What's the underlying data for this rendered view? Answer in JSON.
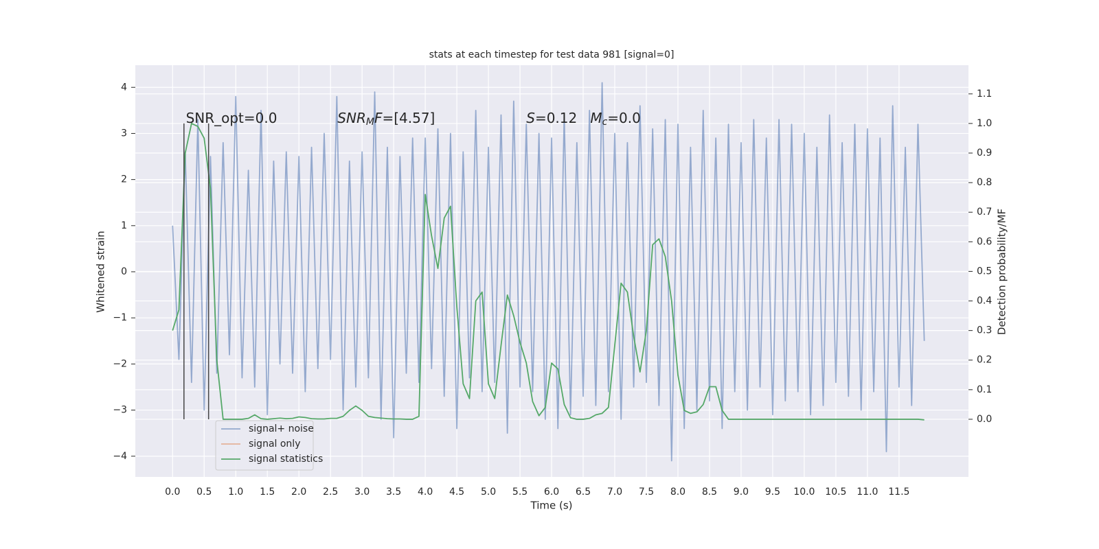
{
  "chart_data": {
    "type": "line",
    "title": "stats at each timestep for test data 981 [signal=0]",
    "xlabel": "Time (s)",
    "ylabel": "Whitened strain",
    "y2label": "Detection probability/MF",
    "x": [
      0.0,
      0.1,
      0.2,
      0.3,
      0.4,
      0.5,
      0.6,
      0.7,
      0.8,
      0.9,
      1.0,
      1.1,
      1.2,
      1.3,
      1.4,
      1.5,
      1.6,
      1.7,
      1.8,
      1.9,
      2.0,
      2.1,
      2.2,
      2.3,
      2.4,
      2.5,
      2.6,
      2.7,
      2.8,
      2.9,
      3.0,
      3.1,
      3.2,
      3.3,
      3.4,
      3.5,
      3.6,
      3.7,
      3.8,
      3.9,
      4.0,
      4.1,
      4.2,
      4.3,
      4.4,
      4.5,
      4.6,
      4.7,
      4.8,
      4.9,
      5.0,
      5.1,
      5.2,
      5.3,
      5.4,
      5.5,
      5.6,
      5.7,
      5.8,
      5.9,
      6.0,
      6.1,
      6.2,
      6.3,
      6.4,
      6.5,
      6.6,
      6.7,
      6.8,
      6.9,
      7.0,
      7.1,
      7.2,
      7.3,
      7.4,
      7.5,
      7.6,
      7.7,
      7.8,
      7.9,
      8.0,
      8.1,
      8.2,
      8.3,
      8.4,
      8.5,
      8.6,
      8.7,
      8.8,
      8.9,
      9.0,
      9.1,
      9.2,
      9.3,
      9.4,
      9.5,
      9.6,
      9.7,
      9.8,
      9.9,
      10.0,
      10.1,
      10.2,
      10.3,
      10.4,
      10.5,
      10.6,
      10.7,
      10.8,
      10.9,
      11.0,
      11.1,
      11.2,
      11.3,
      11.4,
      11.5,
      11.6,
      11.7,
      11.8,
      11.9
    ],
    "series": [
      {
        "name": "signal+ noise",
        "color": "#4c72b0",
        "alpha": 0.55,
        "axis": "y",
        "values": [
          1.0,
          -1.9,
          2.6,
          -2.4,
          3.3,
          -3.0,
          2.5,
          -2.2,
          2.8,
          -1.8,
          3.8,
          -2.3,
          2.2,
          -2.5,
          3.5,
          -3.1,
          2.4,
          -2.0,
          2.6,
          -2.2,
          2.5,
          -2.6,
          2.7,
          -2.1,
          3.0,
          -1.9,
          3.8,
          -3.0,
          2.4,
          -2.5,
          2.6,
          -2.3,
          3.9,
          -3.2,
          2.7,
          -3.6,
          2.5,
          -2.2,
          2.9,
          -2.4,
          2.9,
          -2.1,
          3.1,
          -2.7,
          3.0,
          -3.4,
          2.6,
          -2.3,
          3.5,
          -2.6,
          2.7,
          -2.4,
          3.4,
          -3.5,
          3.7,
          -2.5,
          3.2,
          -2.6,
          3.0,
          -3.2,
          2.9,
          -3.4,
          3.4,
          -3.1,
          2.8,
          -2.7,
          3.5,
          -2.9,
          4.1,
          -2.6,
          3.0,
          -3.2,
          2.8,
          -2.5,
          3.6,
          -2.4,
          3.1,
          -2.9,
          3.3,
          -4.1,
          3.2,
          -3.4,
          2.7,
          -3.0,
          3.5,
          -2.8,
          2.9,
          -3.4,
          3.2,
          -2.6,
          2.8,
          -3.0,
          3.3,
          -2.5,
          2.9,
          -3.1,
          3.3,
          -2.8,
          3.2,
          -2.6,
          3.0,
          -3.1,
          2.7,
          -2.9,
          3.4,
          -2.4,
          2.8,
          -2.7,
          3.2,
          -3.0,
          3.1,
          -2.6,
          2.9,
          -3.9,
          3.6,
          -2.5,
          2.7,
          -2.9,
          3.2,
          -1.5
        ]
      },
      {
        "name": "signal only",
        "color": "#dd8452",
        "alpha": 0.55,
        "axis": "y"
      },
      {
        "name": "signal statistics",
        "color": "#55a868",
        "alpha": 1,
        "axis": "y2",
        "values": [
          0.3,
          0.37,
          0.9,
          1.0,
          0.99,
          0.95,
          0.78,
          0.2,
          0.0,
          0.0,
          0.0,
          0.0,
          0.003,
          0.015,
          0.002,
          0.0,
          0.002,
          0.004,
          0.002,
          0.003,
          0.008,
          0.006,
          0.002,
          0.001,
          0.001,
          0.003,
          0.003,
          0.01,
          0.03,
          0.045,
          0.03,
          0.01,
          0.006,
          0.004,
          0.002,
          0.001,
          0.001,
          0.0,
          0.0,
          0.01,
          0.76,
          0.62,
          0.51,
          0.68,
          0.72,
          0.38,
          0.12,
          0.07,
          0.4,
          0.43,
          0.12,
          0.07,
          0.25,
          0.42,
          0.35,
          0.26,
          0.19,
          0.06,
          0.012,
          0.04,
          0.19,
          0.17,
          0.05,
          0.005,
          0.0,
          0.0,
          0.003,
          0.015,
          0.02,
          0.04,
          0.25,
          0.46,
          0.43,
          0.28,
          0.16,
          0.3,
          0.59,
          0.61,
          0.55,
          0.4,
          0.15,
          0.03,
          0.02,
          0.025,
          0.05,
          0.11,
          0.11,
          0.03,
          0.0,
          0.0,
          0.0,
          0.0,
          0.0,
          0.0,
          0.0,
          0.0,
          0.0,
          0.0,
          0.0,
          0.0,
          0.0,
          0.0,
          0.0,
          0.0,
          0.0,
          0.0,
          0.0,
          0.0,
          0.0,
          0.0,
          0.0,
          0.0,
          0.0,
          0.0,
          0.0,
          0.0,
          0.0,
          0.0,
          0.0,
          -0.002
        ]
      }
    ],
    "vlines": {
      "x": [
        0.18,
        0.57
      ],
      "axis": "y2",
      "ymin": 0,
      "ymax": 1,
      "color": "#444444"
    },
    "annotations": [
      {
        "x": 0.21,
        "y": 3.32,
        "parts": [
          {
            "text": "SNR_opt=0.0"
          }
        ]
      },
      {
        "x": 2.61,
        "y": 3.32,
        "parts": [
          {
            "text": "SNR",
            "italic": true
          },
          {
            "text": "M",
            "italic": true,
            "sub": true
          },
          {
            "text": "F",
            "italic": true
          },
          {
            "text": "=[4.57]"
          }
        ]
      },
      {
        "x": 5.6,
        "y": 3.32,
        "parts": [
          {
            "text": "S",
            "italic": true
          },
          {
            "text": "=0.12   "
          },
          {
            "text": "M",
            "italic": true
          },
          {
            "text": "c",
            "italic": true,
            "sub": true
          },
          {
            "text": "=0.0"
          }
        ]
      }
    ],
    "xlim": [
      -0.59,
      12.6
    ],
    "ylim": [
      -4.45,
      4.48
    ],
    "y2lim": [
      -0.195,
      1.197
    ],
    "xticks": [
      {
        "value": 0,
        "label": "0.0"
      },
      {
        "value": 0.5,
        "label": "0.5"
      },
      {
        "value": 1,
        "label": "1.0"
      },
      {
        "value": 1.5,
        "label": "1.5"
      },
      {
        "value": 2,
        "label": "2.0"
      },
      {
        "value": 2.5,
        "label": "2.5"
      },
      {
        "value": 3,
        "label": "3.0"
      },
      {
        "value": 3.5,
        "label": "3.5"
      },
      {
        "value": 4,
        "label": "4.0"
      },
      {
        "value": 4.5,
        "label": "4.5"
      },
      {
        "value": 5,
        "label": "5.0"
      },
      {
        "value": 5.5,
        "label": "5.5"
      },
      {
        "value": 6,
        "label": "6.0"
      },
      {
        "value": 6.5,
        "label": "6.5"
      },
      {
        "value": 7,
        "label": "7.0"
      },
      {
        "value": 7.5,
        "label": "7.5"
      },
      {
        "value": 8,
        "label": "8.0"
      },
      {
        "value": 8.5,
        "label": "8.5"
      },
      {
        "value": 9,
        "label": "9.0"
      },
      {
        "value": 9.5,
        "label": "9.5"
      },
      {
        "value": 10,
        "label": "10.0"
      },
      {
        "value": 10.5,
        "label": "10.5"
      },
      {
        "value": 11,
        "label": "11.0"
      },
      {
        "value": 11.5,
        "label": "11.5"
      }
    ],
    "yticks": [
      {
        "value": -4,
        "label": "−4"
      },
      {
        "value": -3,
        "label": "−3"
      },
      {
        "value": -2,
        "label": "−2"
      },
      {
        "value": -1,
        "label": "−1"
      },
      0,
      1,
      2,
      3,
      4
    ],
    "y2ticks": [
      {
        "value": 0,
        "label": "0.0"
      },
      {
        "value": 0.1,
        "label": "0.1"
      },
      {
        "value": 0.2,
        "label": "0.2"
      },
      {
        "value": 0.3,
        "label": "0.3"
      },
      {
        "value": 0.4,
        "label": "0.4"
      },
      {
        "value": 0.5,
        "label": "0.5"
      },
      {
        "value": 0.6,
        "label": "0.6"
      },
      {
        "value": 0.7,
        "label": "0.7"
      },
      {
        "value": 0.8,
        "label": "0.8"
      },
      {
        "value": 0.9,
        "label": "0.9"
      },
      {
        "value": 1,
        "label": "1.0"
      },
      {
        "value": 1.1,
        "label": "1.1"
      }
    ],
    "grid": true,
    "legend": "lower left"
  }
}
